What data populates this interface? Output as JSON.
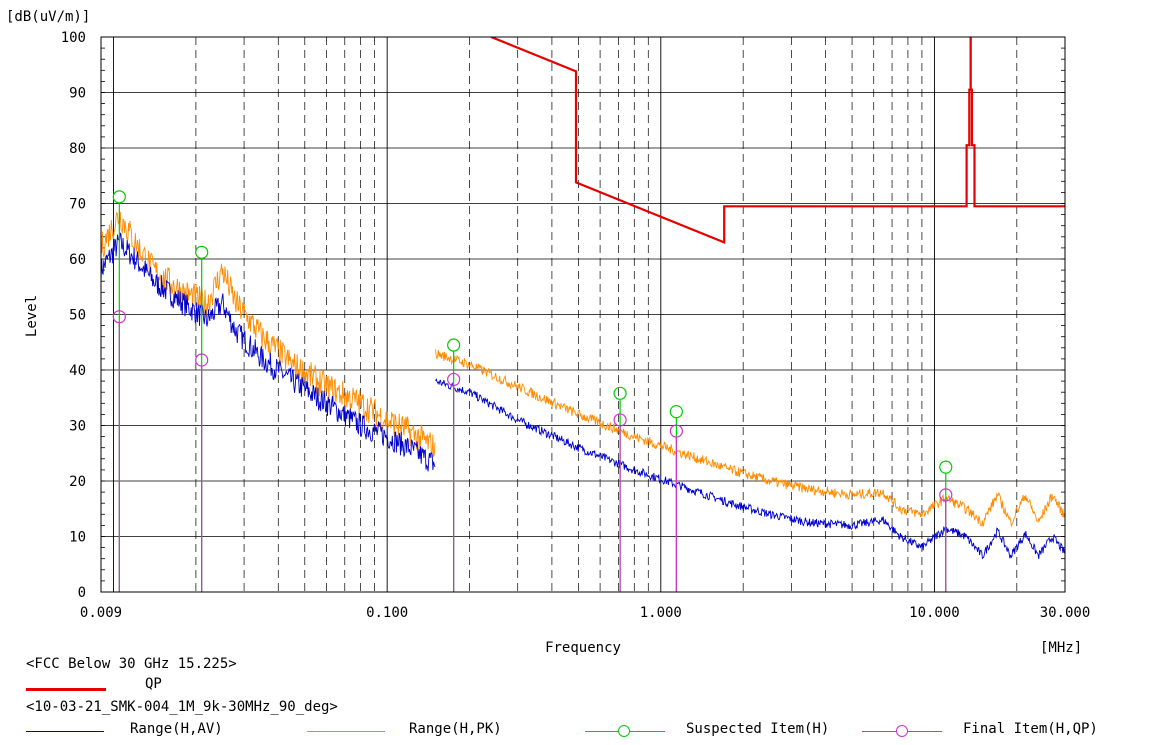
{
  "chart_data": {
    "type": "line",
    "title": "",
    "xlabel": "Frequency",
    "ylabel": "Level",
    "x_unit": "[MHz]",
    "y_unit": "[dB(uV/m)]",
    "xscale": "log",
    "xlim": [
      0.009,
      30.0
    ],
    "ylim": [
      0,
      100
    ],
    "x_ticks": [
      {
        "value": 0.009,
        "label": "0.009"
      },
      {
        "value": 0.1,
        "label": "0.100"
      },
      {
        "value": 1.0,
        "label": "1.000"
      },
      {
        "value": 10.0,
        "label": "10.000"
      },
      {
        "value": 30.0,
        "label": "30.000"
      }
    ],
    "y_ticks": [
      0,
      10,
      20,
      30,
      40,
      50,
      60,
      70,
      80,
      90,
      100
    ],
    "grid": true,
    "colors": {
      "limit": "#e60000",
      "av": "#0000cc",
      "pk": "#ff8c00",
      "suspected": "#00cc00",
      "final": "#cc33cc"
    },
    "limit_group_label": "<FCC Below 30 GHz 15.225>",
    "scan_group_label": "<10-03-21_SMK-004_1M_9k-30MHz_90_deg>",
    "series": [
      {
        "name": "QP",
        "role": "limit",
        "points": [
          [
            0.24,
            100.0
          ],
          [
            0.49,
            93.8
          ],
          [
            0.49,
            73.8
          ],
          [
            1.705,
            63.0
          ],
          [
            1.705,
            69.5
          ],
          [
            13.11,
            69.5
          ],
          [
            13.11,
            80.5
          ],
          [
            13.41,
            80.5
          ],
          [
            13.41,
            90.5
          ],
          [
            13.553,
            90.5
          ],
          [
            13.553,
            100.0
          ],
          [
            13.567,
            100.0
          ],
          [
            13.567,
            90.5
          ],
          [
            13.71,
            90.5
          ],
          [
            13.71,
            80.5
          ],
          [
            14.01,
            80.5
          ],
          [
            14.01,
            69.5
          ],
          [
            30.0,
            69.5
          ]
        ]
      },
      {
        "name": "Range(H,AV)",
        "role": "av",
        "points": [
          [
            0.009,
            58.0
          ],
          [
            0.0105,
            63.0
          ],
          [
            0.012,
            60.0
          ],
          [
            0.014,
            56.0
          ],
          [
            0.018,
            52.0
          ],
          [
            0.022,
            49.0
          ],
          [
            0.025,
            52.0
          ],
          [
            0.028,
            47.0
          ],
          [
            0.035,
            42.0
          ],
          [
            0.045,
            38.0
          ],
          [
            0.06,
            34.0
          ],
          [
            0.08,
            30.0
          ],
          [
            0.1,
            28.0
          ],
          [
            0.12,
            26.0
          ],
          [
            0.15,
            23.0
          ],
          [
            0.15,
            38.0
          ],
          [
            0.2,
            36.0
          ],
          [
            0.3,
            31.0
          ],
          [
            0.5,
            26.0
          ],
          [
            0.8,
            22.0
          ],
          [
            1.2,
            19.0
          ],
          [
            1.8,
            16.0
          ],
          [
            2.5,
            14.0
          ],
          [
            3.5,
            12.5
          ],
          [
            5.0,
            12.0
          ],
          [
            6.5,
            13.0
          ],
          [
            7.5,
            10.0
          ],
          [
            9.0,
            8.0
          ],
          [
            11.0,
            11.5
          ],
          [
            13.0,
            10.0
          ],
          [
            15.0,
            6.5
          ],
          [
            17.0,
            11.0
          ],
          [
            19.0,
            6.5
          ],
          [
            21.5,
            10.5
          ],
          [
            24.0,
            6.5
          ],
          [
            27.0,
            10.0
          ],
          [
            30.0,
            7.0
          ]
        ]
      },
      {
        "name": "Range(H,PK)",
        "role": "pk",
        "points": [
          [
            0.009,
            62.0
          ],
          [
            0.0105,
            68.0
          ],
          [
            0.012,
            63.0
          ],
          [
            0.014,
            58.0
          ],
          [
            0.018,
            54.0
          ],
          [
            0.022,
            52.0
          ],
          [
            0.025,
            58.0
          ],
          [
            0.028,
            52.0
          ],
          [
            0.035,
            46.0
          ],
          [
            0.045,
            41.0
          ],
          [
            0.06,
            37.0
          ],
          [
            0.08,
            34.0
          ],
          [
            0.1,
            31.0
          ],
          [
            0.12,
            29.0
          ],
          [
            0.15,
            26.0
          ],
          [
            0.15,
            43.0
          ],
          [
            0.2,
            41.0
          ],
          [
            0.3,
            37.0
          ],
          [
            0.5,
            32.0
          ],
          [
            0.8,
            28.0
          ],
          [
            1.2,
            25.0
          ],
          [
            1.8,
            22.0
          ],
          [
            2.5,
            20.0
          ],
          [
            3.5,
            18.5
          ],
          [
            5.0,
            17.5
          ],
          [
            6.5,
            18.0
          ],
          [
            7.5,
            15.0
          ],
          [
            9.0,
            14.0
          ],
          [
            11.0,
            17.0
          ],
          [
            13.0,
            15.0
          ],
          [
            15.0,
            12.5
          ],
          [
            17.0,
            17.5
          ],
          [
            19.0,
            12.5
          ],
          [
            21.5,
            17.5
          ],
          [
            24.0,
            12.5
          ],
          [
            27.0,
            17.5
          ],
          [
            30.0,
            13.5
          ]
        ]
      }
    ],
    "markers": [
      {
        "name": "Suspected Item(H)",
        "role": "suspected",
        "points": [
          [
            0.0105,
            71.2
          ],
          [
            0.021,
            61.2
          ],
          [
            0.175,
            44.5
          ],
          [
            0.71,
            35.8
          ],
          [
            1.14,
            32.5
          ],
          [
            11.0,
            22.5
          ]
        ]
      },
      {
        "name": "Final Item(H,QP)",
        "role": "final",
        "points": [
          [
            0.0105,
            49.6
          ],
          [
            0.021,
            41.8
          ],
          [
            0.175,
            38.3
          ],
          [
            0.71,
            31.0
          ],
          [
            1.14,
            29.0
          ],
          [
            11.0,
            17.5
          ]
        ]
      }
    ]
  }
}
